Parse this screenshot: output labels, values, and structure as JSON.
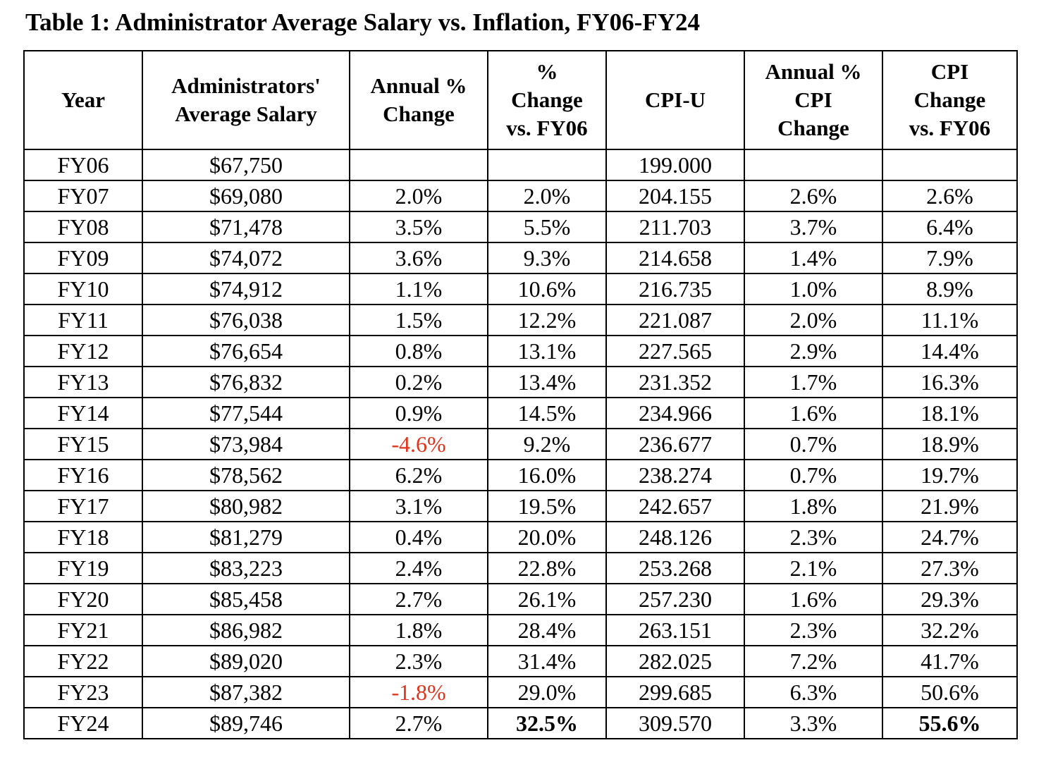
{
  "title": "Table 1: Administrator Average Salary vs. Inflation, FY06-FY24",
  "colors": {
    "negative": "#e0341c",
    "text": "#000000",
    "border": "#000000"
  },
  "headers": [
    [
      "Year"
    ],
    [
      "Administrators'",
      "Average Salary"
    ],
    [
      "Annual %",
      "Change"
    ],
    [
      "%",
      "Change",
      "vs. FY06"
    ],
    [
      "CPI-U"
    ],
    [
      "Annual %",
      "CPI",
      "Change"
    ],
    [
      "CPI",
      "Change",
      "vs. FY06"
    ]
  ],
  "rows": [
    [
      "FY06",
      "$67,750",
      "",
      "",
      "199.000",
      "",
      ""
    ],
    [
      "FY07",
      "$69,080",
      "2.0%",
      "2.0%",
      "204.155",
      "2.6%",
      "2.6%"
    ],
    [
      "FY08",
      "$71,478",
      "3.5%",
      "5.5%",
      "211.703",
      "3.7%",
      "6.4%"
    ],
    [
      "FY09",
      "$74,072",
      "3.6%",
      "9.3%",
      "214.658",
      "1.4%",
      "7.9%"
    ],
    [
      "FY10",
      "$74,912",
      "1.1%",
      "10.6%",
      "216.735",
      "1.0%",
      "8.9%"
    ],
    [
      "FY11",
      "$76,038",
      "1.5%",
      "12.2%",
      "221.087",
      "2.0%",
      "11.1%"
    ],
    [
      "FY12",
      "$76,654",
      "0.8%",
      "13.1%",
      "227.565",
      "2.9%",
      "14.4%"
    ],
    [
      "FY13",
      "$76,832",
      "0.2%",
      "13.4%",
      "231.352",
      "1.7%",
      "16.3%"
    ],
    [
      "FY14",
      "$77,544",
      "0.9%",
      "14.5%",
      "234.966",
      "1.6%",
      "18.1%"
    ],
    [
      "FY15",
      "$73,984",
      "-4.6%",
      "9.2%",
      "236.677",
      "0.7%",
      "18.9%"
    ],
    [
      "FY16",
      "$78,562",
      "6.2%",
      "16.0%",
      "238.274",
      "0.7%",
      "19.7%"
    ],
    [
      "FY17",
      "$80,982",
      "3.1%",
      "19.5%",
      "242.657",
      "1.8%",
      "21.9%"
    ],
    [
      "FY18",
      "$81,279",
      "0.4%",
      "20.0%",
      "248.126",
      "2.3%",
      "24.7%"
    ],
    [
      "FY19",
      "$83,223",
      "2.4%",
      "22.8%",
      "253.268",
      "2.1%",
      "27.3%"
    ],
    [
      "FY20",
      "$85,458",
      "2.7%",
      "26.1%",
      "257.230",
      "1.6%",
      "29.3%"
    ],
    [
      "FY21",
      "$86,982",
      "1.8%",
      "28.4%",
      "263.151",
      "2.3%",
      "32.2%"
    ],
    [
      "FY22",
      "$89,020",
      "2.3%",
      "31.4%",
      "282.025",
      "7.2%",
      "41.7%"
    ],
    [
      "FY23",
      "$87,382",
      "-1.8%",
      "29.0%",
      "299.685",
      "6.3%",
      "50.6%"
    ],
    [
      "FY24",
      "$89,746",
      "2.7%",
      "32.5%",
      "309.570",
      "3.3%",
      "55.6%"
    ]
  ]
}
